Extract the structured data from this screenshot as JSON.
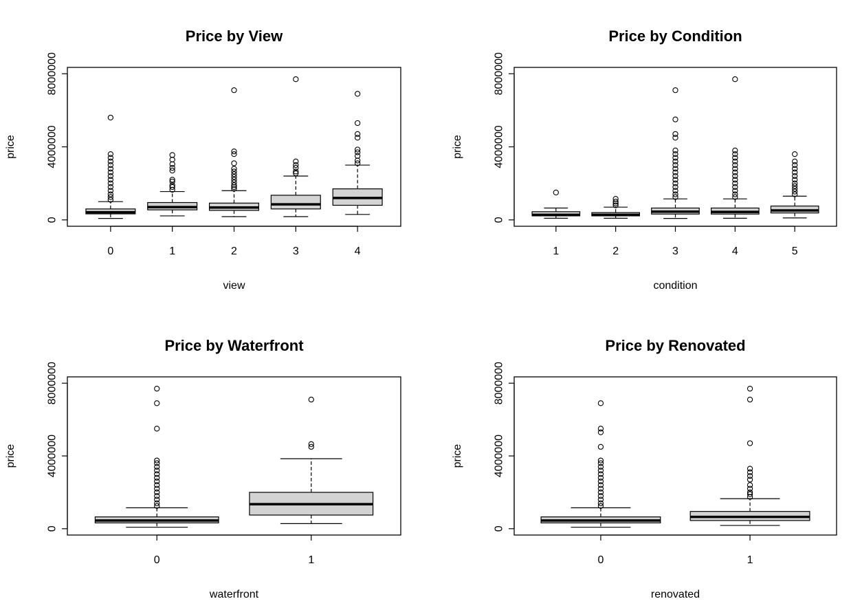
{
  "chart_data": [
    {
      "type": "box",
      "title": "Price by View",
      "xlabel": "view",
      "ylabel": "price",
      "ylim": [
        0,
        8000000
      ],
      "yticks": [
        0,
        4000000,
        8000000
      ],
      "categories": [
        "0",
        "1",
        "2",
        "3",
        "4"
      ],
      "boxes": [
        {
          "category": "0",
          "whisker_low": 80000,
          "q1": 330000,
          "median": 420000,
          "q3": 600000,
          "whisker_high": 1000000,
          "outliers": [
            1100000,
            1250000,
            1400000,
            1600000,
            1800000,
            2000000,
            2200000,
            2400000,
            2600000,
            2800000,
            3000000,
            3200000,
            3400000,
            3600000,
            5600000
          ]
        },
        {
          "category": "1",
          "whisker_low": 220000,
          "q1": 550000,
          "median": 700000,
          "q3": 950000,
          "whisker_high": 1550000,
          "outliers": [
            1650000,
            1800000,
            1900000,
            2100000,
            2200000,
            2700000,
            2850000,
            3050000,
            3300000,
            3550000
          ]
        },
        {
          "category": "2",
          "whisker_low": 180000,
          "q1": 520000,
          "median": 680000,
          "q3": 920000,
          "whisker_high": 1600000,
          "outliers": [
            1700000,
            1800000,
            1900000,
            2050000,
            2200000,
            2350000,
            2500000,
            2650000,
            2800000,
            3100000,
            3600000,
            3750000,
            7100000
          ]
        },
        {
          "category": "3",
          "whisker_low": 180000,
          "q1": 600000,
          "median": 850000,
          "q3": 1350000,
          "whisker_high": 2400000,
          "outliers": [
            2550000,
            2650000,
            2850000,
            3000000,
            3200000,
            7700000
          ]
        },
        {
          "category": "4",
          "whisker_low": 300000,
          "q1": 800000,
          "median": 1200000,
          "q3": 1700000,
          "whisker_high": 3000000,
          "outliers": [
            3100000,
            3250000,
            3500000,
            3700000,
            3850000,
            4500000,
            4700000,
            5300000,
            6900000
          ]
        }
      ]
    },
    {
      "type": "box",
      "title": "Price by Condition",
      "xlabel": "condition",
      "ylabel": "price",
      "ylim": [
        0,
        8000000
      ],
      "yticks": [
        0,
        4000000,
        8000000
      ],
      "categories": [
        "1",
        "2",
        "3",
        "4",
        "5"
      ],
      "boxes": [
        {
          "category": "1",
          "whisker_low": 90000,
          "q1": 220000,
          "median": 280000,
          "q3": 450000,
          "whisker_high": 650000,
          "outliers": [
            1500000
          ]
        },
        {
          "category": "2",
          "whisker_low": 90000,
          "q1": 220000,
          "median": 280000,
          "q3": 400000,
          "whisker_high": 700000,
          "outliers": [
            800000,
            900000,
            1000000,
            1150000
          ]
        },
        {
          "category": "3",
          "whisker_low": 80000,
          "q1": 320000,
          "median": 450000,
          "q3": 650000,
          "whisker_high": 1150000,
          "outliers": [
            1250000,
            1400000,
            1600000,
            1800000,
            2000000,
            2200000,
            2400000,
            2600000,
            2800000,
            3000000,
            3200000,
            3400000,
            3600000,
            3800000,
            4500000,
            4700000,
            5500000,
            7100000
          ]
        },
        {
          "category": "4",
          "whisker_low": 90000,
          "q1": 320000,
          "median": 440000,
          "q3": 650000,
          "whisker_high": 1150000,
          "outliers": [
            1250000,
            1400000,
            1600000,
            1800000,
            2000000,
            2200000,
            2400000,
            2600000,
            2800000,
            3000000,
            3200000,
            3400000,
            3600000,
            3800000,
            7700000
          ]
        },
        {
          "category": "5",
          "whisker_low": 110000,
          "q1": 380000,
          "median": 520000,
          "q3": 760000,
          "whisker_high": 1300000,
          "outliers": [
            1400000,
            1550000,
            1700000,
            1850000,
            2000000,
            2200000,
            2400000,
            2600000,
            2800000,
            3000000,
            3200000,
            3600000
          ]
        }
      ]
    },
    {
      "type": "box",
      "title": "Price by Waterfront",
      "xlabel": "waterfront",
      "ylabel": "price",
      "ylim": [
        0,
        8000000
      ],
      "yticks": [
        0,
        4000000,
        8000000
      ],
      "categories": [
        "0",
        "1"
      ],
      "boxes": [
        {
          "category": "0",
          "whisker_low": 80000,
          "q1": 320000,
          "median": 450000,
          "q3": 650000,
          "whisker_high": 1150000,
          "outliers": [
            1250000,
            1400000,
            1600000,
            1800000,
            2000000,
            2200000,
            2400000,
            2600000,
            2800000,
            3000000,
            3200000,
            3400000,
            3600000,
            3750000,
            5500000,
            6900000,
            7700000
          ]
        },
        {
          "category": "1",
          "whisker_low": 280000,
          "q1": 750000,
          "median": 1350000,
          "q3": 2000000,
          "whisker_high": 3850000,
          "outliers": [
            4500000,
            4650000,
            7100000
          ]
        }
      ]
    },
    {
      "type": "box",
      "title": "Price by Renovated",
      "xlabel": "renovated",
      "ylabel": "price",
      "ylim": [
        0,
        8000000
      ],
      "yticks": [
        0,
        4000000,
        8000000
      ],
      "categories": [
        "0",
        "1"
      ],
      "boxes": [
        {
          "category": "0",
          "whisker_low": 80000,
          "q1": 320000,
          "median": 450000,
          "q3": 650000,
          "whisker_high": 1150000,
          "outliers": [
            1250000,
            1400000,
            1600000,
            1800000,
            2000000,
            2200000,
            2400000,
            2600000,
            2800000,
            3000000,
            3200000,
            3400000,
            3600000,
            3750000,
            4500000,
            5300000,
            5500000,
            6900000
          ]
        },
        {
          "category": "1",
          "whisker_low": 180000,
          "q1": 450000,
          "median": 650000,
          "q3": 950000,
          "whisker_high": 1650000,
          "outliers": [
            1750000,
            1900000,
            2000000,
            2200000,
            2400000,
            2700000,
            2900000,
            3100000,
            3300000,
            4700000,
            7100000,
            7700000
          ]
        }
      ]
    }
  ]
}
